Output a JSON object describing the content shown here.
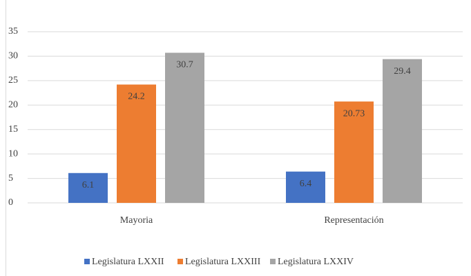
{
  "chart_data": {
    "type": "bar",
    "categories": [
      "Mayoria",
      "Representación"
    ],
    "series": [
      {
        "name": "Legislatura LXXII",
        "color": "#4472c4",
        "values": [
          6.1,
          6.4
        ]
      },
      {
        "name": "Legislatura LXXIII",
        "color": "#ed7d31",
        "values": [
          24.2,
          20.73
        ]
      },
      {
        "name": "Legislatura LXXIV",
        "color": "#a5a5a5",
        "values": [
          30.7,
          29.4
        ]
      }
    ],
    "ylim": [
      0,
      35
    ],
    "yticks": [
      0,
      5,
      10,
      15,
      20,
      25,
      30,
      35
    ],
    "grid": true,
    "legend": "bottom"
  }
}
